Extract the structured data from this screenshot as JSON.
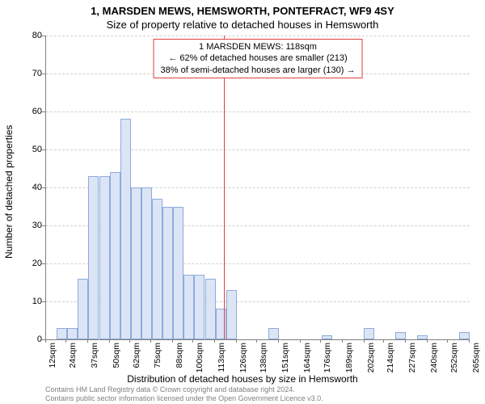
{
  "title_main": "1, MARSDEN MEWS, HEMSWORTH, PONTEFRACT, WF9 4SY",
  "title_sub": "Size of property relative to detached houses in Hemsworth",
  "y_axis_label": "Number of detached properties",
  "x_axis_label": "Distribution of detached houses by size in Hemsworth",
  "footer_line1": "Contains HM Land Registry data © Crown copyright and database right 2024.",
  "footer_line2": "Contains public sector information licensed under the Open Government Licence v3.0.",
  "annotation_line1": "1 MARSDEN MEWS: 118sqm",
  "annotation_line2": "← 62% of detached houses are smaller (213)",
  "annotation_line3": "38% of semi-detached houses are larger (130) →",
  "chart": {
    "type": "histogram",
    "bar_fill": "#dbe5f5",
    "bar_stroke": "#8faadc",
    "background": "#ffffff",
    "grid_color": "#d0d0d0",
    "axis_color": "#808080",
    "marker_color": "#e04040",
    "marker_x_value": 118,
    "y_max": 80,
    "y_tick_step": 10,
    "x_ticks": [
      12,
      24,
      37,
      50,
      62,
      75,
      88,
      100,
      113,
      126,
      138,
      151,
      164,
      176,
      189,
      202,
      214,
      227,
      240,
      252,
      265
    ],
    "x_tick_unit": "sqm",
    "values": [
      0,
      3,
      3,
      16,
      43,
      43,
      44,
      58,
      40,
      40,
      37,
      35,
      35,
      17,
      17,
      16,
      8,
      13,
      0,
      0,
      0,
      3,
      0,
      0,
      0,
      0,
      1,
      0,
      0,
      0,
      3,
      0,
      0,
      2,
      0,
      1,
      0,
      0,
      0,
      2
    ]
  }
}
